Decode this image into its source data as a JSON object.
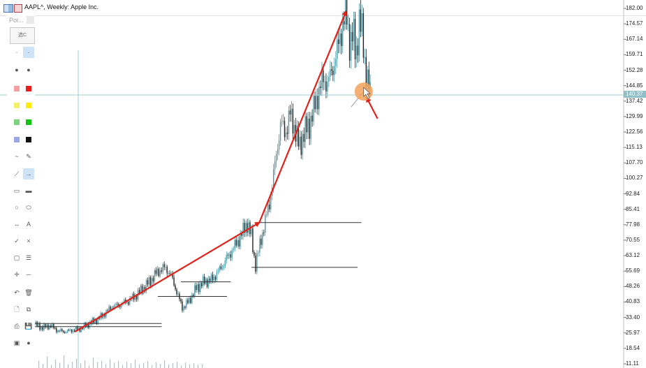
{
  "window": {
    "title": "AAPL^, Weekly:  Apple Inc."
  },
  "toolbar": {
    "header_label": "Poi...",
    "preview_label": "选C",
    "tools": [
      {
        "name": "dot-small-icon",
        "glyph": "·"
      },
      {
        "name": "dot-tiny-icon",
        "glyph": "·"
      },
      {
        "name": "dot-medium-icon",
        "glyph": "●"
      },
      {
        "name": "dot-large-icon",
        "glyph": "●"
      },
      {
        "name": "color-red-light-swatch",
        "color": "#f2a0a0"
      },
      {
        "name": "color-red-swatch",
        "color": "#ee1c1c"
      },
      {
        "name": "color-yellow-light-swatch",
        "color": "#f5ef6a"
      },
      {
        "name": "color-yellow-swatch",
        "color": "#ffee00"
      },
      {
        "name": "color-green-light-swatch",
        "color": "#7bd37b"
      },
      {
        "name": "color-green-swatch",
        "color": "#12c412"
      },
      {
        "name": "color-blue-light-swatch",
        "color": "#9aa8e6"
      },
      {
        "name": "color-black-swatch",
        "color": "#111111"
      },
      {
        "name": "curve-icon",
        "glyph": "~"
      },
      {
        "name": "pen-icon",
        "glyph": "✎"
      },
      {
        "name": "line-icon",
        "glyph": "⟋"
      },
      {
        "name": "arrow-icon",
        "glyph": "→"
      },
      {
        "name": "rectangle-icon",
        "glyph": "▭"
      },
      {
        "name": "rectangle-filled-icon",
        "glyph": "▬"
      },
      {
        "name": "ellipse-icon",
        "glyph": "○"
      },
      {
        "name": "ellipse-filled-icon",
        "glyph": "⬭"
      },
      {
        "name": "double-arrow-icon",
        "glyph": "↔"
      },
      {
        "name": "text-icon",
        "glyph": "A"
      },
      {
        "name": "check-icon",
        "glyph": "✓"
      },
      {
        "name": "cross-icon",
        "glyph": "×"
      },
      {
        "name": "frame-icon",
        "glyph": "▢"
      },
      {
        "name": "list-icon",
        "glyph": "☰"
      },
      {
        "name": "crosshair-icon",
        "glyph": "✛"
      },
      {
        "name": "dash-icon",
        "glyph": "─"
      },
      {
        "name": "undo-icon",
        "glyph": "↶"
      },
      {
        "name": "trash-icon",
        "glyph": "🗑"
      },
      {
        "name": "new-file-icon",
        "glyph": "🗋"
      },
      {
        "name": "copy-icon",
        "glyph": "⧉"
      },
      {
        "name": "open-icon",
        "glyph": "⎙"
      },
      {
        "name": "save-icon",
        "glyph": "💾"
      },
      {
        "name": "screenshot-icon",
        "glyph": "▣"
      },
      {
        "name": "help-icon",
        "glyph": "●"
      }
    ]
  },
  "colors": {
    "bull_candle": "#4c9aa8",
    "bear_candle": "#222222",
    "arrow": "#e0221a",
    "crosshair": "#9ccfd6",
    "cursor_highlight": "#f3a35a",
    "level_line": "#333333"
  },
  "price_tag": "140.37",
  "chart_data": {
    "type": "candlestick",
    "title": "AAPL^, Weekly:  Apple Inc.",
    "ylim": [
      11.11,
      182.0
    ],
    "y_ticks": [
      "182.00",
      "174.57",
      "167.14",
      "159.71",
      "152.28",
      "144.85",
      "137.42",
      "129.99",
      "122.56",
      "115.13",
      "107.70",
      "100.27",
      "92.84",
      "85.41",
      "77.98",
      "70.55",
      "63.12",
      "55.69",
      "48.26",
      "40.83",
      "33.40",
      "25.97",
      "18.54",
      "11.11"
    ],
    "current_price": 140.37,
    "price_path": [
      [
        0,
        30.0
      ],
      [
        10,
        28.5
      ],
      [
        20,
        29.5
      ],
      [
        30,
        27.0
      ],
      [
        40,
        26.5
      ],
      [
        50,
        27.5
      ],
      [
        60,
        28.0
      ],
      [
        70,
        30.5
      ],
      [
        80,
        32.0
      ],
      [
        90,
        35.0
      ],
      [
        100,
        38.5
      ],
      [
        110,
        39.5
      ],
      [
        120,
        41.0
      ],
      [
        130,
        43.5
      ],
      [
        140,
        47.0
      ],
      [
        150,
        51.0
      ],
      [
        160,
        55.5
      ],
      [
        170,
        57.5
      ],
      [
        178,
        53.0
      ],
      [
        186,
        44.0
      ],
      [
        192,
        38.0
      ],
      [
        200,
        41.0
      ],
      [
        210,
        47.5
      ],
      [
        220,
        50.5
      ],
      [
        230,
        51.5
      ],
      [
        240,
        56.0
      ],
      [
        250,
        62.0
      ],
      [
        260,
        67.5
      ],
      [
        270,
        74.0
      ],
      [
        276,
        79.0
      ],
      [
        282,
        72.0
      ],
      [
        287,
        58.0
      ],
      [
        293,
        69.0
      ],
      [
        300,
        80.0
      ],
      [
        305,
        88.0
      ],
      [
        310,
        100.0
      ],
      [
        315,
        114.0
      ],
      [
        320,
        127.0
      ],
      [
        326,
        122.0
      ],
      [
        332,
        131.0
      ],
      [
        338,
        125.0
      ],
      [
        344,
        115.0
      ],
      [
        350,
        122.0
      ],
      [
        357,
        126.0
      ],
      [
        363,
        133.0
      ],
      [
        370,
        143.0
      ],
      [
        376,
        148.0
      ],
      [
        382,
        146.0
      ],
      [
        388,
        154.0
      ],
      [
        394,
        162.0
      ],
      [
        400,
        174.0
      ],
      [
        405,
        180.0
      ],
      [
        410,
        165.0
      ],
      [
        414,
        170.0
      ],
      [
        418,
        159.0
      ],
      [
        422,
        176.0
      ],
      [
        426,
        170.0
      ],
      [
        430,
        155.0
      ],
      [
        434,
        145.0
      ],
      [
        437,
        140.0
      ]
    ],
    "volume": [
      0.35,
      0.2,
      0.55,
      0.15,
      0.4,
      0.25,
      0.6,
      0.18,
      0.3,
      0.45,
      0.22,
      0.38,
      0.12,
      0.5,
      0.28,
      0.33,
      0.19,
      0.42,
      0.26,
      0.35,
      0.15,
      0.3,
      0.22,
      0.4,
      0.18,
      0.25,
      0.32,
      0.14,
      0.28,
      0.2,
      0.36,
      0.17,
      0.24,
      0.3,
      0.12,
      0.26,
      0.18,
      0.22,
      0.15,
      0.2
    ],
    "support_lines": [
      {
        "price": 30.5,
        "from": 0,
        "to": 165
      },
      {
        "price": 29.0,
        "from": 0,
        "to": 165
      },
      {
        "price": 43.5,
        "from": 160,
        "to": 250
      },
      {
        "price": 50.5,
        "from": 190,
        "to": 255
      },
      {
        "price": 57.5,
        "from": 282,
        "to": 420
      },
      {
        "price": 79.0,
        "from": 290,
        "to": 425
      }
    ],
    "arrows": [
      {
        "from": [
          52,
          26.5
        ],
        "to": [
          292,
          79.0
        ]
      },
      {
        "from": [
          292,
          79.0
        ],
        "to": [
          405,
          180.5
        ]
      },
      {
        "from": [
          446,
          129.0
        ],
        "to": [
          432,
          139.0
        ]
      }
    ],
    "crosshair_price": 140.37,
    "grid": false
  }
}
